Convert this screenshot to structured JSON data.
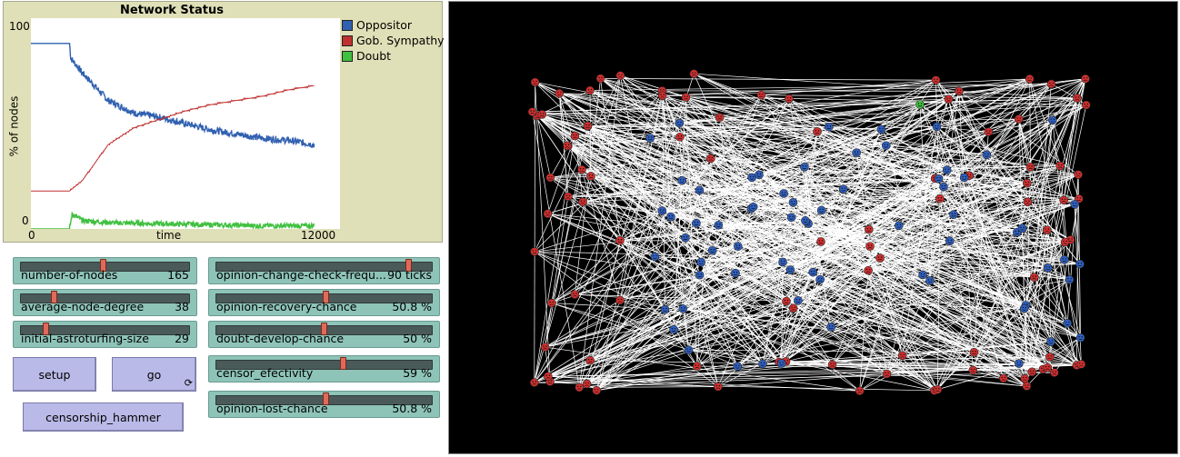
{
  "plot": {
    "title": "Network Status",
    "y_max": "100",
    "y_min": "0",
    "x_min": "0",
    "x_max": "12000",
    "x_label": "time",
    "y_label": "% of nodes",
    "legend": [
      {
        "label": "Oppositor",
        "color": "#3060b0"
      },
      {
        "label": "Gob. Sympathy",
        "color": "#c03030"
      },
      {
        "label": "Doubt",
        "color": "#40c040"
      }
    ]
  },
  "chart_data": {
    "type": "line",
    "title": "Network Status",
    "xlabel": "time",
    "ylabel": "% of nodes",
    "xlim": [
      0,
      12000
    ],
    "ylim": [
      0,
      100
    ],
    "series": [
      {
        "name": "Oppositor",
        "color": "#3060b0",
        "x": [
          0,
          1500,
          1550,
          2000,
          3000,
          4000,
          5000,
          6000,
          7000,
          8000,
          9000,
          10000,
          11000
        ],
        "y": [
          88,
          88,
          81,
          74,
          61,
          55,
          53,
          50,
          47,
          45,
          43,
          42,
          40
        ]
      },
      {
        "name": "Gob. Sympathy",
        "color": "#c03030",
        "x": [
          0,
          1500,
          2000,
          3000,
          4000,
          5000,
          6000,
          7000,
          8000,
          9000,
          10000,
          11000
        ],
        "y": [
          18,
          18,
          23,
          40,
          48,
          52,
          56,
          59,
          61,
          63,
          66,
          68
        ]
      },
      {
        "name": "Doubt",
        "color": "#40c040",
        "x": [
          0,
          1500,
          1600,
          2000,
          3000,
          5000,
          7000,
          9000,
          11000
        ],
        "y": [
          0,
          0,
          7,
          4,
          3,
          2.5,
          2,
          1.5,
          1.5
        ]
      }
    ]
  },
  "sliders": [
    {
      "label": "number-of-nodes",
      "value": "165",
      "fraction": 0.49
    },
    {
      "label": "average-node-degree",
      "value": "38",
      "fraction": 0.19
    },
    {
      "label": "initial-astroturfing-size",
      "value": "29",
      "fraction": 0.14
    },
    {
      "label": "opinion-change-check-frequ...",
      "value": "90 ticks",
      "fraction": 0.9
    },
    {
      "label": "opinion-recovery-chance",
      "value": "50.8 %",
      "fraction": 0.508
    },
    {
      "label": "doubt-develop-chance",
      "value": "50 %",
      "fraction": 0.5
    },
    {
      "label": "censor_efectivity",
      "value": "59 %",
      "fraction": 0.59
    },
    {
      "label": "opinion-lost-chance",
      "value": "50.8 %",
      "fraction": 0.508
    }
  ],
  "buttons": {
    "setup": "setup",
    "go": "go",
    "go_forever_icon": "⟳",
    "censorship": "censorship_hammer"
  },
  "world": {
    "node_counts": {
      "red": 95,
      "blue": 69,
      "green": 1
    },
    "colors": {
      "red": "#d03030",
      "blue": "#3060c0",
      "green": "#40c040",
      "edge": "#ffffff",
      "background": "#000000"
    }
  }
}
